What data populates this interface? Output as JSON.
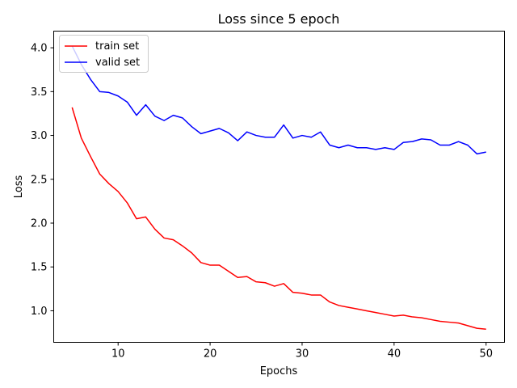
{
  "chart_data": {
    "type": "line",
    "title": "Loss since 5 epoch",
    "xlabel": "Epochs",
    "ylabel": "Loss",
    "xlim": [
      3,
      52
    ],
    "ylim": [
      0.64,
      4.19
    ],
    "xticks": [
      10,
      20,
      30,
      40,
      50
    ],
    "yticks": [
      1.0,
      1.5,
      2.0,
      2.5,
      3.0,
      3.5,
      4.0
    ],
    "ytick_labels": [
      "1.0",
      "1.5",
      "2.0",
      "2.5",
      "3.0",
      "3.5",
      "4.0"
    ],
    "grid": false,
    "legend": "upper-left",
    "x": [
      5,
      6,
      7,
      8,
      9,
      10,
      11,
      12,
      13,
      14,
      15,
      16,
      17,
      18,
      19,
      20,
      21,
      22,
      23,
      24,
      25,
      26,
      27,
      28,
      29,
      30,
      31,
      32,
      33,
      34,
      35,
      36,
      37,
      38,
      39,
      40,
      41,
      42,
      43,
      44,
      45,
      46,
      47,
      48,
      49,
      50
    ],
    "series": [
      {
        "name": "train set",
        "color": "#ff0000",
        "values": [
          3.32,
          2.97,
          2.76,
          2.56,
          2.45,
          2.36,
          2.23,
          2.05,
          2.07,
          1.93,
          1.83,
          1.81,
          1.74,
          1.66,
          1.55,
          1.52,
          1.52,
          1.45,
          1.38,
          1.39,
          1.33,
          1.32,
          1.28,
          1.31,
          1.21,
          1.2,
          1.18,
          1.18,
          1.1,
          1.06,
          1.04,
          1.02,
          1.0,
          0.98,
          0.96,
          0.94,
          0.95,
          0.93,
          0.92,
          0.9,
          0.88,
          0.87,
          0.86,
          0.83,
          0.8,
          0.79
        ]
      },
      {
        "name": "valid set",
        "color": "#0000ff",
        "values": [
          4.02,
          3.81,
          3.64,
          3.5,
          3.49,
          3.45,
          3.38,
          3.23,
          3.35,
          3.22,
          3.17,
          3.23,
          3.2,
          3.1,
          3.02,
          3.05,
          3.08,
          3.03,
          2.94,
          3.04,
          3.0,
          2.98,
          2.98,
          3.12,
          2.97,
          3.0,
          2.98,
          3.04,
          2.89,
          2.86,
          2.89,
          2.86,
          2.86,
          2.84,
          2.86,
          2.84,
          2.92,
          2.93,
          2.96,
          2.95,
          2.89,
          2.89,
          2.93,
          2.89,
          2.79,
          2.81
        ]
      }
    ]
  }
}
